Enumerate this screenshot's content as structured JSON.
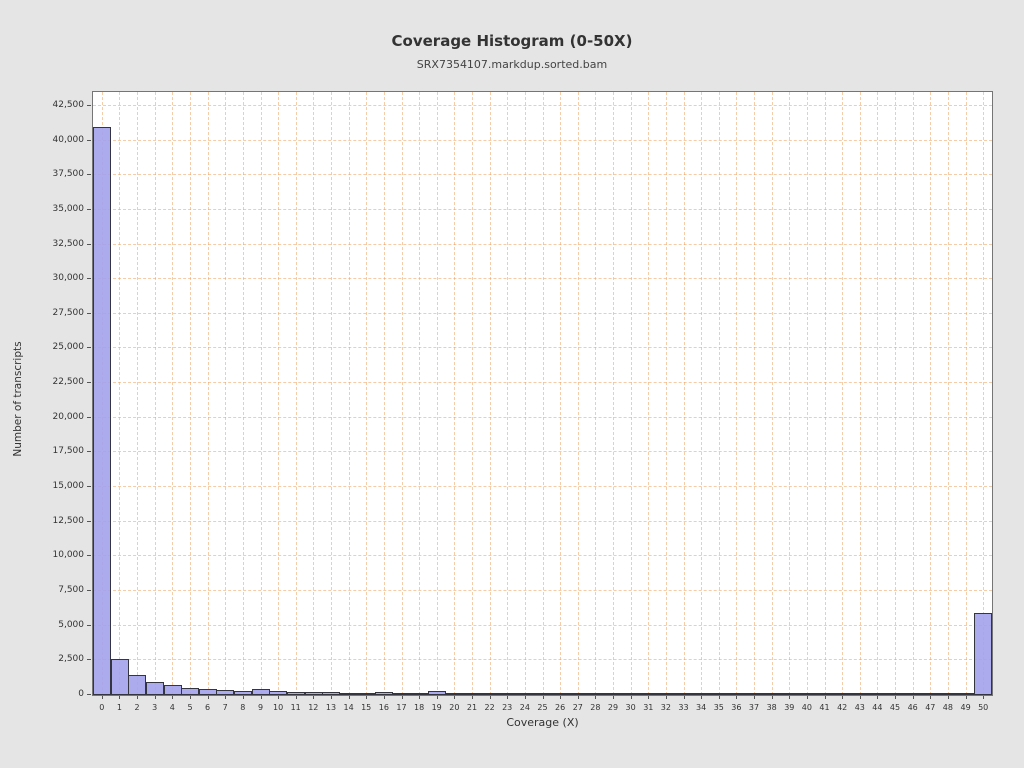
{
  "page": {
    "background": "#e5e5e5"
  },
  "chart_data": {
    "type": "bar",
    "title": "Coverage Histogram (0-50X)",
    "subtitle": "SRX7354107.markdup.sorted.bam",
    "xlabel": "Coverage (X)",
    "ylabel": "Number of transcripts",
    "categories": [
      0,
      1,
      2,
      3,
      4,
      5,
      6,
      7,
      8,
      9,
      10,
      11,
      12,
      13,
      14,
      15,
      16,
      17,
      18,
      19,
      20,
      21,
      22,
      23,
      24,
      25,
      26,
      27,
      28,
      29,
      30,
      31,
      32,
      33,
      34,
      35,
      36,
      37,
      38,
      39,
      40,
      41,
      42,
      43,
      44,
      45,
      46,
      47,
      48,
      49,
      50
    ],
    "values": [
      41000,
      2600,
      1450,
      950,
      750,
      520,
      430,
      370,
      310,
      450,
      320,
      250,
      240,
      190,
      170,
      140,
      190,
      150,
      80,
      280,
      110,
      90,
      80,
      80,
      90,
      80,
      70,
      70,
      70,
      70,
      70,
      60,
      60,
      60,
      50,
      150,
      40,
      40,
      40,
      40,
      40,
      40,
      40,
      40,
      40,
      40,
      40,
      40,
      40,
      30,
      5900
    ],
    "ylim": [
      0,
      43500
    ],
    "yticks": [
      0,
      2500,
      5000,
      7500,
      10000,
      12500,
      15000,
      17500,
      20000,
      22500,
      25000,
      27500,
      30000,
      32500,
      35000,
      37500,
      40000,
      42500
    ],
    "legend": "none",
    "grid": {
      "style": "dashed",
      "color": "#eea060",
      "vertical": "every x tick",
      "horizontal": "every 2500"
    },
    "colors": {
      "bar_fill": "#a4a4eb",
      "bar_border": "#35353f",
      "plot_bg": "#ffffff",
      "page_bg": "#e5e5e5",
      "grid": "#eea060",
      "text": "#333333"
    }
  }
}
